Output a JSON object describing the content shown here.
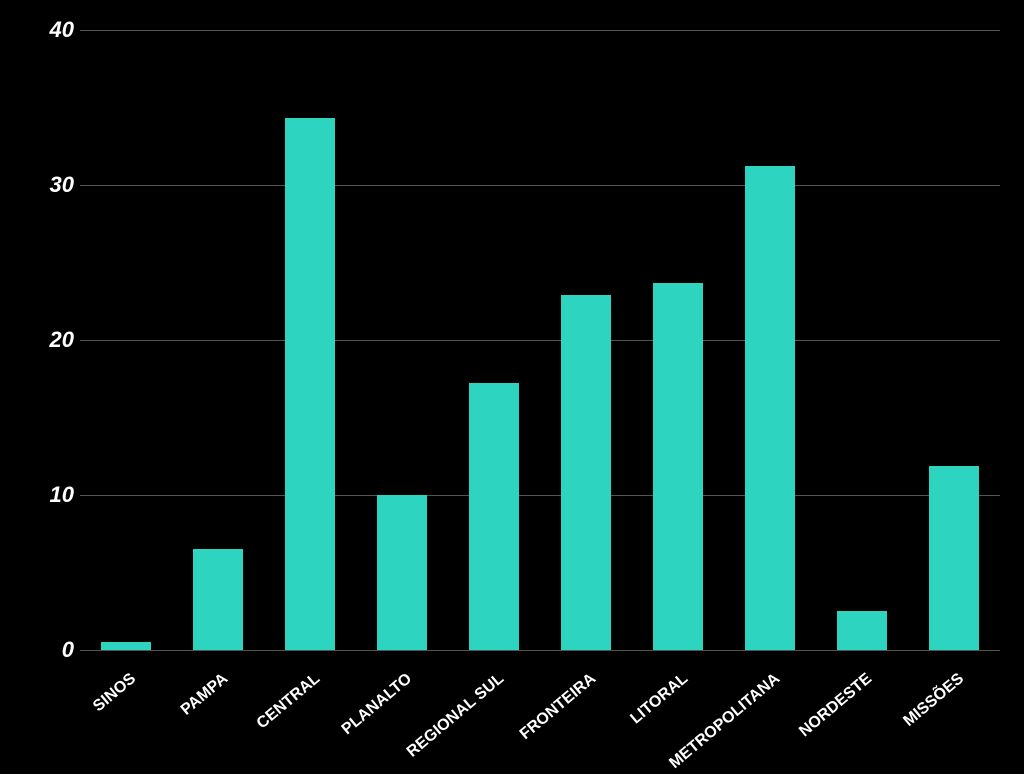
{
  "chart": {
    "type": "bar",
    "background_color": "#000000",
    "bar_color": "#2DD4BF",
    "grid_color": "#555555",
    "text_color": "#ffffff",
    "ylim": [
      0,
      40
    ],
    "ytick_step": 10,
    "y_ticks": [
      0,
      10,
      20,
      30,
      40
    ],
    "y_tick_fontsize": 22,
    "y_tick_fontstyle": "italic",
    "y_tick_fontweight": 700,
    "x_tick_fontsize": 16,
    "x_tick_fontweight": 700,
    "x_tick_rotation": -40,
    "bar_width_ratio": 0.55,
    "categories": [
      "SINOS",
      "PAMPA",
      "CENTRAL",
      "PLANALTO",
      "REGIONAL SUL",
      "FRONTEIRA",
      "LITORAL",
      "METROPOLITANA",
      "NORDESTE",
      "MISSÕES"
    ],
    "values": [
      0.5,
      6.5,
      34.3,
      10.0,
      17.2,
      22.9,
      23.7,
      31.2,
      2.5,
      11.9
    ]
  }
}
